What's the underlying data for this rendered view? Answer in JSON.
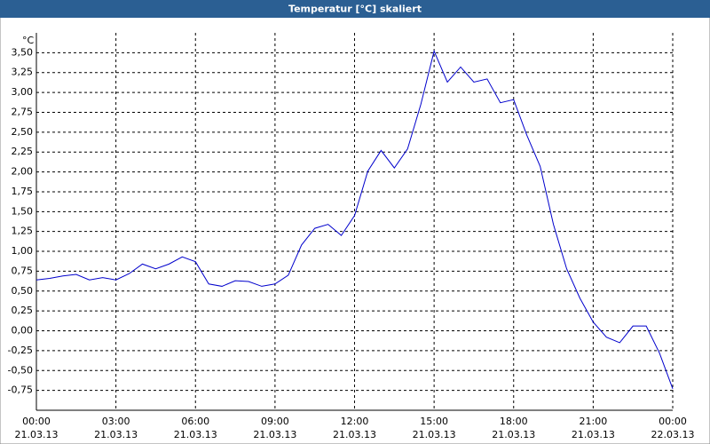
{
  "chart_data": {
    "type": "line",
    "title": "Temperatur [°C] skaliert",
    "y_unit": "°C",
    "x": [
      0,
      0.5,
      1,
      1.5,
      2,
      2.5,
      3,
      3.5,
      4,
      4.5,
      5,
      5.5,
      6,
      6.5,
      7,
      7.5,
      8,
      8.5,
      9,
      9.5,
      10,
      10.5,
      11,
      11.5,
      12,
      12.5,
      13,
      13.5,
      14,
      14.5,
      15,
      15.5,
      16,
      16.5,
      17,
      17.5,
      18,
      18.5,
      19,
      19.5,
      20,
      20.5,
      21,
      21.5,
      22,
      22.5,
      23,
      23.5,
      24
    ],
    "series": [
      {
        "color": "#0000cc",
        "values": [
          0.64,
          0.66,
          0.69,
          0.71,
          0.64,
          0.67,
          0.64,
          0.72,
          0.84,
          0.78,
          0.84,
          0.93,
          0.87,
          0.59,
          0.56,
          0.63,
          0.62,
          0.56,
          0.59,
          0.7,
          1.08,
          1.29,
          1.34,
          1.2,
          1.45,
          2.01,
          2.27,
          2.05,
          2.29,
          2.85,
          3.52,
          3.13,
          3.32,
          3.13,
          3.17,
          2.87,
          2.91,
          2.46,
          2.07,
          1.34,
          0.78,
          0.41,
          0.11,
          -0.08,
          -0.15,
          0.06,
          0.06,
          -0.28,
          -0.73
        ]
      }
    ],
    "xlim": [
      0,
      24
    ],
    "xticks": [
      {
        "value": 0,
        "label": "00:00"
      },
      {
        "value": 3,
        "label": "03:00"
      },
      {
        "value": 6,
        "label": "06:00"
      },
      {
        "value": 9,
        "label": "09:00"
      },
      {
        "value": 12,
        "label": "12:00"
      },
      {
        "value": 15,
        "label": "15:00"
      },
      {
        "value": 18,
        "label": "18:00"
      },
      {
        "value": 21,
        "label": "21:00"
      },
      {
        "value": 24,
        "label": "00:00"
      }
    ],
    "xtick_dates": [
      "21.03.13",
      "21.03.13",
      "21.03.13",
      "21.03.13",
      "21.03.13",
      "21.03.13",
      "21.03.13",
      "21.03.13",
      "22.03.13"
    ],
    "ylim": [
      -1,
      3.75
    ],
    "yticks": [
      {
        "value": -0.75,
        "label": "-0,75"
      },
      {
        "value": -0.5,
        "label": "-0,50"
      },
      {
        "value": -0.25,
        "label": "-0,25"
      },
      {
        "value": 0,
        "label": "0,00"
      },
      {
        "value": 0.25,
        "label": "0,25"
      },
      {
        "value": 0.5,
        "label": "0,50"
      },
      {
        "value": 0.75,
        "label": "0,75"
      },
      {
        "value": 1,
        "label": "1,00"
      },
      {
        "value": 1.25,
        "label": "1,25"
      },
      {
        "value": 1.5,
        "label": "1,50"
      },
      {
        "value": 1.75,
        "label": "1,75"
      },
      {
        "value": 2,
        "label": "2,00"
      },
      {
        "value": 2.25,
        "label": "2,25"
      },
      {
        "value": 2.5,
        "label": "2,50"
      },
      {
        "value": 2.75,
        "label": "2,75"
      },
      {
        "value": 3,
        "label": "3,00"
      },
      {
        "value": 3.25,
        "label": "3,25"
      },
      {
        "value": 3.5,
        "label": "3,50"
      }
    ],
    "grid": true
  }
}
